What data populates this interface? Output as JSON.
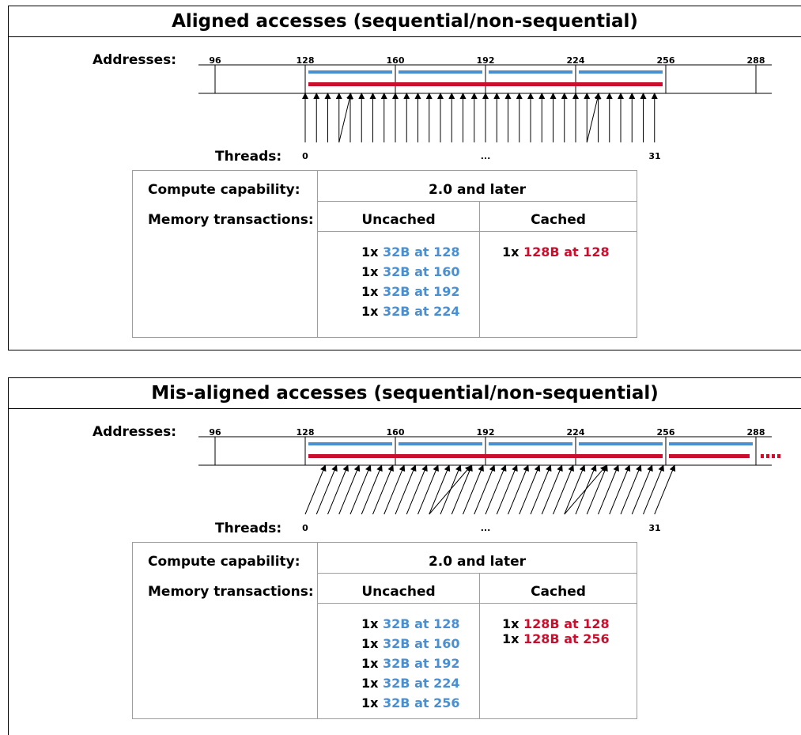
{
  "colors": {
    "blue": "#4a8fd0",
    "red": "#c8102e"
  },
  "panels": [
    {
      "title": "Aligned accesses (sequential/non-sequential)",
      "addresses_label": "Addresses:",
      "threads_label": "Threads:",
      "address_ticks": [
        "96",
        "128",
        "160",
        "192",
        "224",
        "256",
        "288"
      ],
      "thread_labels": {
        "first": "0",
        "middle": "...",
        "last": "31"
      },
      "table": {
        "cc_label": "Compute capability:",
        "cc_value": "2.0 and later",
        "mt_label": "Memory transactions:",
        "uncached_header": "Uncached",
        "cached_header": "Cached",
        "uncached": [
          {
            "count": "1x",
            "desc": "32B at 128"
          },
          {
            "count": "1x",
            "desc": "32B at 160"
          },
          {
            "count": "1x",
            "desc": "32B at 192"
          },
          {
            "count": "1x",
            "desc": "32B at 224"
          }
        ],
        "cached": [
          {
            "count": "1x",
            "desc": "128B at 128"
          }
        ]
      }
    },
    {
      "title": "Mis-aligned accesses (sequential/non-sequential)",
      "addresses_label": "Addresses:",
      "threads_label": "Threads:",
      "address_ticks": [
        "96",
        "128",
        "160",
        "192",
        "224",
        "256",
        "288"
      ],
      "thread_labels": {
        "first": "0",
        "middle": "...",
        "last": "31"
      },
      "table": {
        "cc_label": "Compute capability:",
        "cc_value": "2.0 and later",
        "mt_label": "Memory transactions:",
        "uncached_header": "Uncached",
        "cached_header": "Cached",
        "uncached": [
          {
            "count": "1x",
            "desc": "32B at 128"
          },
          {
            "count": "1x",
            "desc": "32B at 160"
          },
          {
            "count": "1x",
            "desc": "32B at 192"
          },
          {
            "count": "1x",
            "desc": "32B at 224"
          },
          {
            "count": "1x",
            "desc": "32B at 256"
          }
        ],
        "cached": [
          {
            "count": "1x",
            "desc": "128B at 128"
          },
          {
            "count": "1x",
            "desc": "128B at 256"
          }
        ]
      }
    }
  ]
}
